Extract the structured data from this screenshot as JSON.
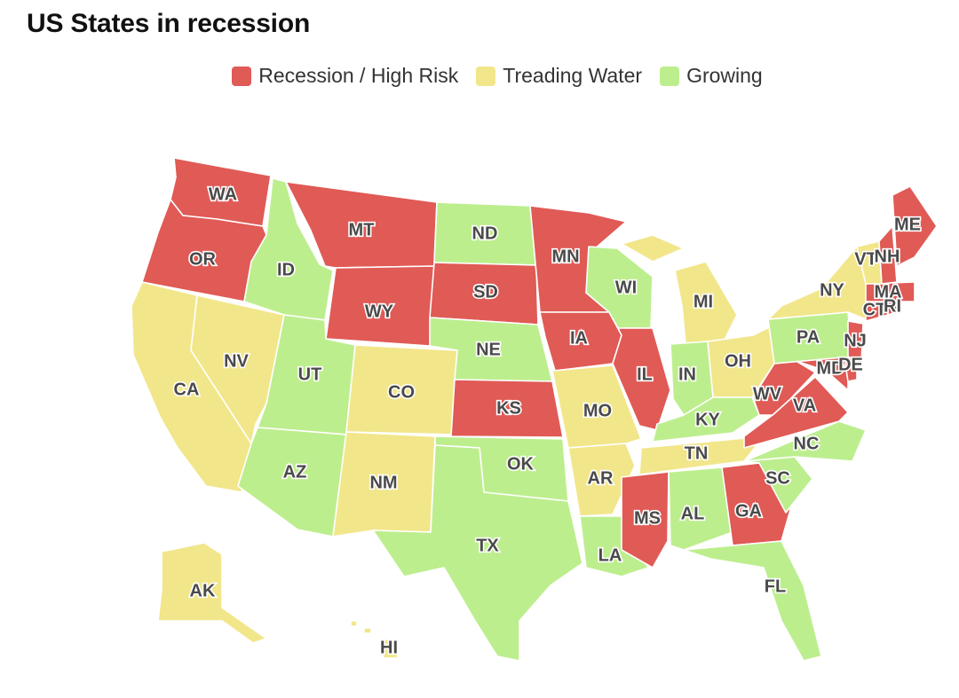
{
  "title": "US States in recession",
  "colors": {
    "recession": "#e05a56",
    "treading": "#f2e68b",
    "growing": "#bdee8e"
  },
  "legend": [
    {
      "key": "recession",
      "label": "Recession / High Risk"
    },
    {
      "key": "treading",
      "label": "Treading Water"
    },
    {
      "key": "growing",
      "label": "Growing"
    }
  ],
  "states": [
    {
      "code": "WA",
      "status": "recession"
    },
    {
      "code": "OR",
      "status": "recession"
    },
    {
      "code": "CA",
      "status": "treading"
    },
    {
      "code": "NV",
      "status": "treading"
    },
    {
      "code": "ID",
      "status": "growing"
    },
    {
      "code": "MT",
      "status": "recession"
    },
    {
      "code": "WY",
      "status": "recession"
    },
    {
      "code": "UT",
      "status": "growing"
    },
    {
      "code": "AZ",
      "status": "growing"
    },
    {
      "code": "CO",
      "status": "treading"
    },
    {
      "code": "NM",
      "status": "treading"
    },
    {
      "code": "ND",
      "status": "growing"
    },
    {
      "code": "SD",
      "status": "recession"
    },
    {
      "code": "NE",
      "status": "growing"
    },
    {
      "code": "KS",
      "status": "recession"
    },
    {
      "code": "OK",
      "status": "growing"
    },
    {
      "code": "TX",
      "status": "growing"
    },
    {
      "code": "MN",
      "status": "recession"
    },
    {
      "code": "IA",
      "status": "recession"
    },
    {
      "code": "MO",
      "status": "treading"
    },
    {
      "code": "AR",
      "status": "treading"
    },
    {
      "code": "LA",
      "status": "growing"
    },
    {
      "code": "WI",
      "status": "growing"
    },
    {
      "code": "IL",
      "status": "recession"
    },
    {
      "code": "MI",
      "status": "treading"
    },
    {
      "code": "IN",
      "status": "growing"
    },
    {
      "code": "OH",
      "status": "treading"
    },
    {
      "code": "KY",
      "status": "growing"
    },
    {
      "code": "TN",
      "status": "treading"
    },
    {
      "code": "MS",
      "status": "recession"
    },
    {
      "code": "AL",
      "status": "growing"
    },
    {
      "code": "GA",
      "status": "recession"
    },
    {
      "code": "FL",
      "status": "growing"
    },
    {
      "code": "SC",
      "status": "growing"
    },
    {
      "code": "NC",
      "status": "growing"
    },
    {
      "code": "VA",
      "status": "recession"
    },
    {
      "code": "WV",
      "status": "recession"
    },
    {
      "code": "MD",
      "status": "recession"
    },
    {
      "code": "DE",
      "status": "recession"
    },
    {
      "code": "PA",
      "status": "growing"
    },
    {
      "code": "NJ",
      "status": "recession"
    },
    {
      "code": "NY",
      "status": "treading"
    },
    {
      "code": "CT",
      "status": "recession"
    },
    {
      "code": "RI",
      "status": "recession"
    },
    {
      "code": "MA",
      "status": "recession"
    },
    {
      "code": "VT",
      "status": "treading"
    },
    {
      "code": "NH",
      "status": "recession"
    },
    {
      "code": "ME",
      "status": "recession"
    },
    {
      "code": "AK",
      "status": "treading"
    },
    {
      "code": "HI",
      "status": "treading"
    }
  ]
}
